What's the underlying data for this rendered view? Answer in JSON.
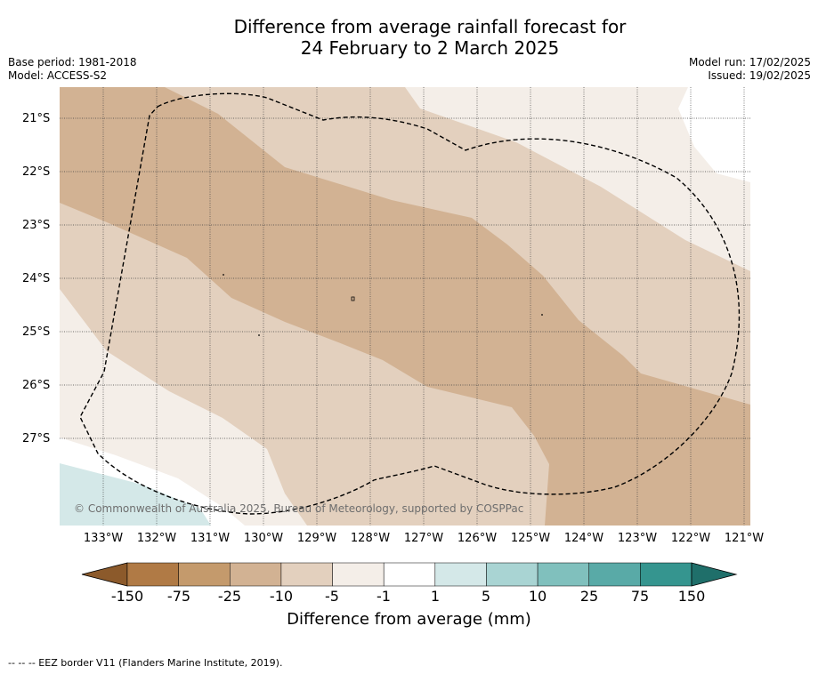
{
  "title": {
    "line1": "Difference from average rainfall forecast for",
    "line2": "24 February to 2 March 2025"
  },
  "meta_left": {
    "base_period": "Base period: 1981-2018",
    "model": "Model: ACCESS-S2"
  },
  "meta_right": {
    "model_run": "Model run: 17/02/2025",
    "issued": "Issued: 19/02/2025"
  },
  "map": {
    "lat_labels": [
      "21°S",
      "22°S",
      "23°S",
      "24°S",
      "25°S",
      "26°S",
      "27°S"
    ],
    "lon_labels": [
      "133°W",
      "132°W",
      "131°W",
      "130°W",
      "129°W",
      "128°W",
      "127°W",
      "126°W",
      "125°W",
      "124°W",
      "123°W",
      "122°W",
      "121°W"
    ],
    "copyright": "© Commonwealth of Australia 2025, Bureau of Meteorology, supported by COSPPac",
    "colors": {
      "minus_10_to_minus_25": "#d2b293",
      "minus_5_to_minus_10": "#e3d0be",
      "minus_1_to_minus_5": "#f4eee8",
      "neutral": "#ffffff",
      "plus_1_to_plus_5": "#d4e8e8"
    },
    "eez_line": "dashed-black"
  },
  "colorbar": {
    "ticks": [
      "-150",
      "-75",
      "-25",
      "-10",
      "-5",
      "-1",
      "1",
      "5",
      "10",
      "25",
      "75",
      "150"
    ],
    "colors": [
      "#8c5a2b",
      "#b07a45",
      "#c49a6c",
      "#d2b293",
      "#e3d0be",
      "#f4eee8",
      "#ffffff",
      "#d4e8e8",
      "#a9d4d3",
      "#80c0bd",
      "#59aaa7",
      "#35958f",
      "#1f6f6a"
    ],
    "label": "Difference from average (mm)"
  },
  "footnote": "--  --  -- EEZ border V11 (Flanders Marine Institute, 2019)."
}
